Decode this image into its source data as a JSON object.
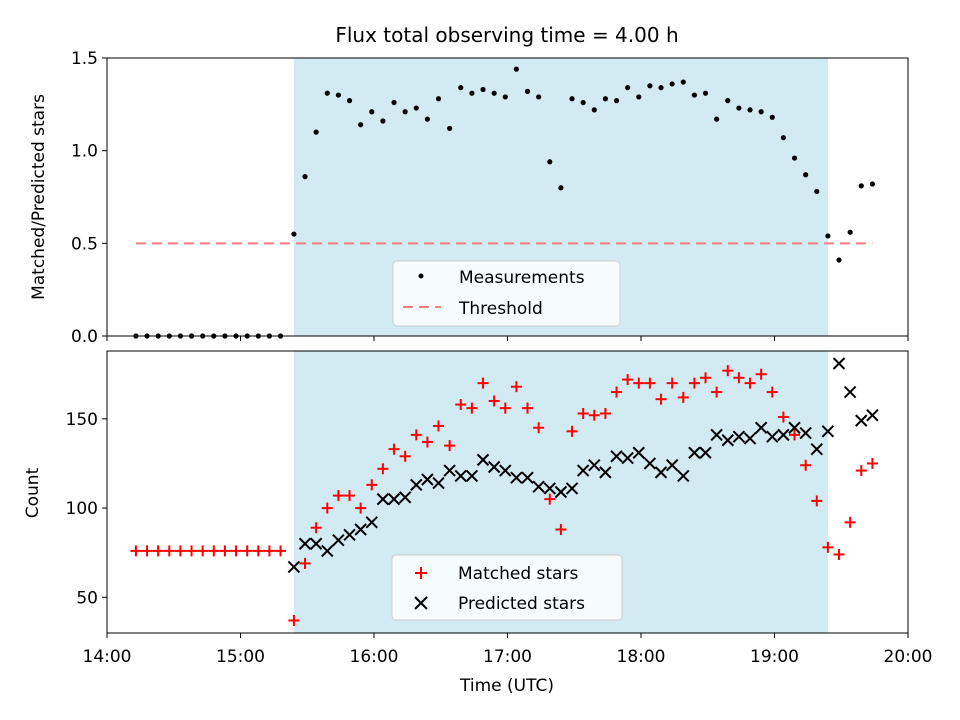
{
  "figure": {
    "title": "Flux total observing time = 4.00 h"
  },
  "chart_data": [
    {
      "type": "scatter",
      "panel": "top",
      "title": "Flux total observing time = 4.00 h",
      "xlabel": "",
      "ylabel": "Matched/Predicted stars",
      "xlim": [
        "14:00",
        "20:00"
      ],
      "ylim": [
        0,
        1.5
      ],
      "yticks": [
        "0.0",
        "0.5",
        "1.0",
        "1.5"
      ],
      "grid": false,
      "legend_position": "lower center",
      "shaded_interval": {
        "start": "15:24",
        "end": "19:24",
        "color": "#add8e6"
      },
      "series": [
        {
          "name": "Measurements",
          "marker": "dot",
          "color": "#000000",
          "points": [
            [
              "14:13",
              0
            ],
            [
              "14:18",
              0
            ],
            [
              "14:23",
              0
            ],
            [
              "14:28",
              0
            ],
            [
              "14:33",
              0
            ],
            [
              "14:38",
              0
            ],
            [
              "14:43",
              0
            ],
            [
              "14:48",
              0
            ],
            [
              "14:53",
              0
            ],
            [
              "14:58",
              0
            ],
            [
              "15:03",
              0
            ],
            [
              "15:08",
              0
            ],
            [
              "15:13",
              0
            ],
            [
              "15:18",
              0
            ],
            [
              "15:24",
              0.55
            ],
            [
              "15:29",
              0.86
            ],
            [
              "15:34",
              1.1
            ],
            [
              "15:39",
              1.31
            ],
            [
              "15:44",
              1.3
            ],
            [
              "15:49",
              1.27
            ],
            [
              "15:54",
              1.14
            ],
            [
              "15:59",
              1.21
            ],
            [
              "16:04",
              1.16
            ],
            [
              "16:09",
              1.26
            ],
            [
              "16:14",
              1.21
            ],
            [
              "16:19",
              1.23
            ],
            [
              "16:24",
              1.17
            ],
            [
              "16:29",
              1.28
            ],
            [
              "16:34",
              1.12
            ],
            [
              "16:39",
              1.34
            ],
            [
              "16:44",
              1.31
            ],
            [
              "16:49",
              1.33
            ],
            [
              "16:54",
              1.31
            ],
            [
              "16:59",
              1.29
            ],
            [
              "17:04",
              1.44
            ],
            [
              "17:09",
              1.32
            ],
            [
              "17:14",
              1.29
            ],
            [
              "17:19",
              0.94
            ],
            [
              "17:24",
              0.8
            ],
            [
              "17:29",
              1.28
            ],
            [
              "17:34",
              1.26
            ],
            [
              "17:39",
              1.22
            ],
            [
              "17:44",
              1.28
            ],
            [
              "17:49",
              1.27
            ],
            [
              "17:54",
              1.34
            ],
            [
              "17:59",
              1.29
            ],
            [
              "18:04",
              1.35
            ],
            [
              "18:09",
              1.34
            ],
            [
              "18:14",
              1.36
            ],
            [
              "18:19",
              1.37
            ],
            [
              "18:24",
              1.3
            ],
            [
              "18:29",
              1.31
            ],
            [
              "18:34",
              1.17
            ],
            [
              "18:39",
              1.27
            ],
            [
              "18:44",
              1.23
            ],
            [
              "18:49",
              1.22
            ],
            [
              "18:54",
              1.21
            ],
            [
              "18:59",
              1.18
            ],
            [
              "19:04",
              1.07
            ],
            [
              "19:09",
              0.96
            ],
            [
              "19:14",
              0.87
            ],
            [
              "19:19",
              0.78
            ],
            [
              "19:24",
              0.54
            ],
            [
              "19:29",
              0.41
            ],
            [
              "19:34",
              0.56
            ],
            [
              "19:39",
              0.81
            ],
            [
              "19:44",
              0.82
            ]
          ]
        },
        {
          "name": "Threshold",
          "style": "dashed",
          "color": "#f08080",
          "points": [
            [
              "14:13",
              0.5
            ],
            [
              "19:44",
              0.5
            ]
          ]
        }
      ]
    },
    {
      "type": "scatter",
      "panel": "bottom",
      "xlabel": "Time (UTC)",
      "ylabel": "Count",
      "xlim": [
        "14:00",
        "20:00"
      ],
      "ylim": [
        30,
        188
      ],
      "xticks": [
        "14:00",
        "15:00",
        "16:00",
        "17:00",
        "18:00",
        "19:00",
        "20:00"
      ],
      "yticks": [
        "50",
        "100",
        "150"
      ],
      "grid": false,
      "legend_position": "lower center",
      "shaded_interval": {
        "start": "15:24",
        "end": "19:24",
        "color": "#add8e6"
      },
      "series": [
        {
          "name": "Matched stars",
          "marker": "plus",
          "color": "#ff0000",
          "points": [
            [
              "14:13",
              76
            ],
            [
              "14:18",
              76
            ],
            [
              "14:23",
              76
            ],
            [
              "14:28",
              76
            ],
            [
              "14:33",
              76
            ],
            [
              "14:38",
              76
            ],
            [
              "14:43",
              76
            ],
            [
              "14:48",
              76
            ],
            [
              "14:53",
              76
            ],
            [
              "14:58",
              76
            ],
            [
              "15:03",
              76
            ],
            [
              "15:08",
              76
            ],
            [
              "15:13",
              76
            ],
            [
              "15:18",
              76
            ],
            [
              "15:24",
              37
            ],
            [
              "15:29",
              69
            ],
            [
              "15:34",
              89
            ],
            [
              "15:39",
              100
            ],
            [
              "15:44",
              107
            ],
            [
              "15:49",
              107
            ],
            [
              "15:54",
              100
            ],
            [
              "15:59",
              113
            ],
            [
              "16:04",
              122
            ],
            [
              "16:09",
              133
            ],
            [
              "16:14",
              129
            ],
            [
              "16:19",
              141
            ],
            [
              "16:24",
              137
            ],
            [
              "16:29",
              146
            ],
            [
              "16:34",
              135
            ],
            [
              "16:39",
              158
            ],
            [
              "16:44",
              156
            ],
            [
              "16:49",
              170
            ],
            [
              "16:54",
              160
            ],
            [
              "16:59",
              156
            ],
            [
              "17:04",
              168
            ],
            [
              "17:09",
              156
            ],
            [
              "17:14",
              145
            ],
            [
              "17:19",
              105
            ],
            [
              "17:24",
              88
            ],
            [
              "17:29",
              143
            ],
            [
              "17:34",
              153
            ],
            [
              "17:39",
              152
            ],
            [
              "17:44",
              153
            ],
            [
              "17:49",
              165
            ],
            [
              "17:54",
              172
            ],
            [
              "17:59",
              170
            ],
            [
              "18:04",
              170
            ],
            [
              "18:09",
              161
            ],
            [
              "18:14",
              170
            ],
            [
              "18:19",
              162
            ],
            [
              "18:24",
              170
            ],
            [
              "18:29",
              173
            ],
            [
              "18:34",
              165
            ],
            [
              "18:39",
              177
            ],
            [
              "18:44",
              173
            ],
            [
              "18:49",
              170
            ],
            [
              "18:54",
              175
            ],
            [
              "18:59",
              165
            ],
            [
              "19:04",
              151
            ],
            [
              "19:09",
              141
            ],
            [
              "19:14",
              124
            ],
            [
              "19:19",
              104
            ],
            [
              "19:24",
              78
            ],
            [
              "19:29",
              74
            ],
            [
              "19:34",
              92
            ],
            [
              "19:39",
              121
            ],
            [
              "19:44",
              125
            ]
          ]
        },
        {
          "name": "Predicted stars",
          "marker": "x",
          "color": "#000000",
          "points": [
            [
              "15:24",
              67
            ],
            [
              "15:29",
              80
            ],
            [
              "15:34",
              80
            ],
            [
              "15:39",
              76
            ],
            [
              "15:44",
              82
            ],
            [
              "15:49",
              85
            ],
            [
              "15:54",
              88
            ],
            [
              "15:59",
              92
            ],
            [
              "16:04",
              105
            ],
            [
              "16:09",
              105
            ],
            [
              "16:14",
              106
            ],
            [
              "16:19",
              113
            ],
            [
              "16:24",
              116
            ],
            [
              "16:29",
              114
            ],
            [
              "16:34",
              121
            ],
            [
              "16:39",
              118
            ],
            [
              "16:44",
              118
            ],
            [
              "16:49",
              127
            ],
            [
              "16:54",
              123
            ],
            [
              "16:59",
              121
            ],
            [
              "17:04",
              117
            ],
            [
              "17:09",
              117
            ],
            [
              "17:14",
              112
            ],
            [
              "17:19",
              111
            ],
            [
              "17:24",
              109
            ],
            [
              "17:29",
              111
            ],
            [
              "17:34",
              121
            ],
            [
              "17:39",
              124
            ],
            [
              "17:44",
              120
            ],
            [
              "17:49",
              129
            ],
            [
              "17:54",
              128
            ],
            [
              "17:59",
              131
            ],
            [
              "18:04",
              125
            ],
            [
              "18:09",
              120
            ],
            [
              "18:14",
              124
            ],
            [
              "18:19",
              118
            ],
            [
              "18:24",
              131
            ],
            [
              "18:29",
              131
            ],
            [
              "18:34",
              141
            ],
            [
              "18:39",
              138
            ],
            [
              "18:44",
              140
            ],
            [
              "18:49",
              139
            ],
            [
              "18:54",
              145
            ],
            [
              "18:59",
              140
            ],
            [
              "19:04",
              141
            ],
            [
              "19:09",
              145
            ],
            [
              "19:14",
              142
            ],
            [
              "19:19",
              133
            ],
            [
              "19:24",
              143
            ],
            [
              "19:29",
              181
            ],
            [
              "19:34",
              165
            ],
            [
              "19:39",
              149
            ],
            [
              "19:44",
              152
            ]
          ]
        }
      ]
    }
  ]
}
